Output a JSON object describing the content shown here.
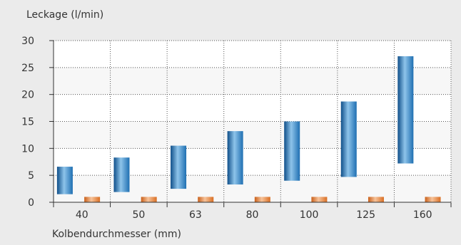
{
  "chart_data": {
    "type": "bar",
    "ylabel": "Leckage (l/min)",
    "xlabel": "Kolbendurchmesser (mm)",
    "categories": [
      "40",
      "50",
      "63",
      "80",
      "100",
      "125",
      "160"
    ],
    "ylim": [
      0,
      30
    ],
    "yticks": [
      0,
      5,
      10,
      15,
      20,
      25,
      30
    ],
    "grid": true,
    "legend": "none",
    "series": [
      {
        "color": "#1f6fb2",
        "ranges": [
          [
            1.5,
            6.6
          ],
          [
            1.9,
            8.3
          ],
          [
            2.5,
            10.5
          ],
          [
            3.3,
            13.2
          ],
          [
            4.0,
            15.0
          ],
          [
            4.7,
            18.7
          ],
          [
            7.2,
            27.1
          ]
        ]
      },
      {
        "color": "#e07b2a",
        "ranges": [
          [
            0,
            1.0
          ],
          [
            0,
            1.0
          ],
          [
            0,
            1.0
          ],
          [
            0,
            1.0
          ],
          [
            0,
            1.0
          ],
          [
            0,
            1.0
          ],
          [
            0,
            1.0
          ]
        ]
      }
    ]
  }
}
